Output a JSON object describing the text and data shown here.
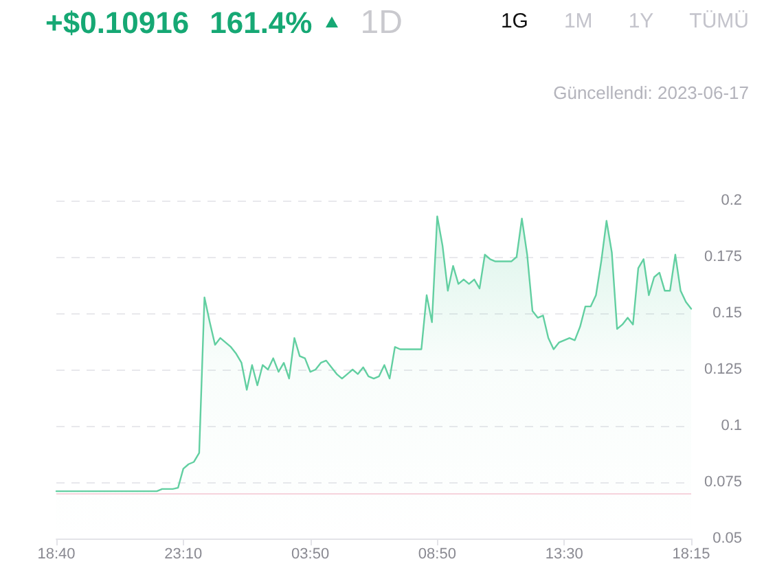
{
  "chart_data": {
    "type": "area",
    "title": "+$0.10916",
    "subtitle": "161.4%",
    "annotations": [
      "1D",
      "1G",
      "1M",
      "1Y",
      "TÜMÜ",
      "Güncellendi: 2023-06-17"
    ],
    "categories": [
      "18:40",
      null,
      null,
      null,
      null,
      null,
      null,
      null,
      null,
      null,
      null,
      null,
      null,
      null,
      null,
      null,
      null,
      null,
      null,
      null,
      null,
      null,
      null,
      null,
      "23:10",
      null,
      null,
      null,
      null,
      null,
      null,
      null,
      null,
      null,
      null,
      null,
      null,
      null,
      null,
      null,
      null,
      null,
      null,
      null,
      null,
      null,
      null,
      null,
      "03:50",
      null,
      null,
      null,
      null,
      null,
      null,
      null,
      null,
      null,
      null,
      null,
      null,
      null,
      null,
      null,
      null,
      null,
      null,
      null,
      null,
      null,
      null,
      null,
      "08:50",
      null,
      null,
      null,
      null,
      null,
      null,
      null,
      null,
      null,
      null,
      null,
      null,
      null,
      null,
      null,
      null,
      null,
      null,
      null,
      null,
      null,
      null,
      null,
      "13:30",
      null,
      null,
      null,
      null,
      null,
      null,
      null,
      null,
      null,
      null,
      null,
      null,
      null,
      null,
      null,
      null,
      null,
      null,
      null,
      null,
      null,
      null,
      null,
      "18:15"
    ],
    "values": [
      0.071,
      0.071,
      0.071,
      0.071,
      0.071,
      0.071,
      0.071,
      0.071,
      0.071,
      0.071,
      0.071,
      0.071,
      0.071,
      0.071,
      0.071,
      0.071,
      0.071,
      0.071,
      0.071,
      0.071,
      0.072,
      0.072,
      0.072,
      0.0725,
      0.081,
      0.083,
      0.084,
      0.088,
      0.157,
      0.146,
      0.136,
      0.139,
      0.137,
      0.135,
      0.132,
      0.128,
      0.116,
      0.127,
      0.118,
      0.127,
      0.125,
      0.13,
      0.124,
      0.128,
      0.121,
      0.139,
      0.131,
      0.13,
      0.124,
      0.125,
      0.128,
      0.129,
      0.126,
      0.123,
      0.121,
      0.123,
      0.125,
      0.123,
      0.126,
      0.122,
      0.121,
      0.122,
      0.127,
      0.121,
      0.135,
      0.134,
      0.134,
      0.134,
      0.134,
      0.134,
      0.158,
      0.146,
      0.193,
      0.18,
      0.16,
      0.171,
      0.163,
      0.165,
      0.163,
      0.165,
      0.161,
      0.176,
      0.174,
      0.173,
      0.173,
      0.173,
      0.173,
      0.175,
      0.192,
      0.176,
      0.151,
      0.148,
      0.149,
      0.139,
      0.134,
      0.137,
      0.138,
      0.139,
      0.138,
      0.144,
      0.153,
      0.153,
      0.158,
      0.173,
      0.191,
      0.177,
      0.143,
      0.145,
      0.148,
      0.145,
      0.17,
      0.174,
      0.158,
      0.166,
      0.168,
      0.16,
      0.16,
      0.176,
      0.16,
      0.155,
      0.152
    ],
    "color": "#62cfa1",
    "ylim": [
      0.05,
      0.2
    ],
    "yticks": [
      0.05,
      0.075,
      0.1,
      0.125,
      0.15,
      0.175,
      0.2
    ],
    "grid": "y",
    "marker": "none",
    "ref_lines": [
      {
        "axis": "y",
        "value": 0.071,
        "color": "#f6d3dc"
      }
    ]
  }
}
